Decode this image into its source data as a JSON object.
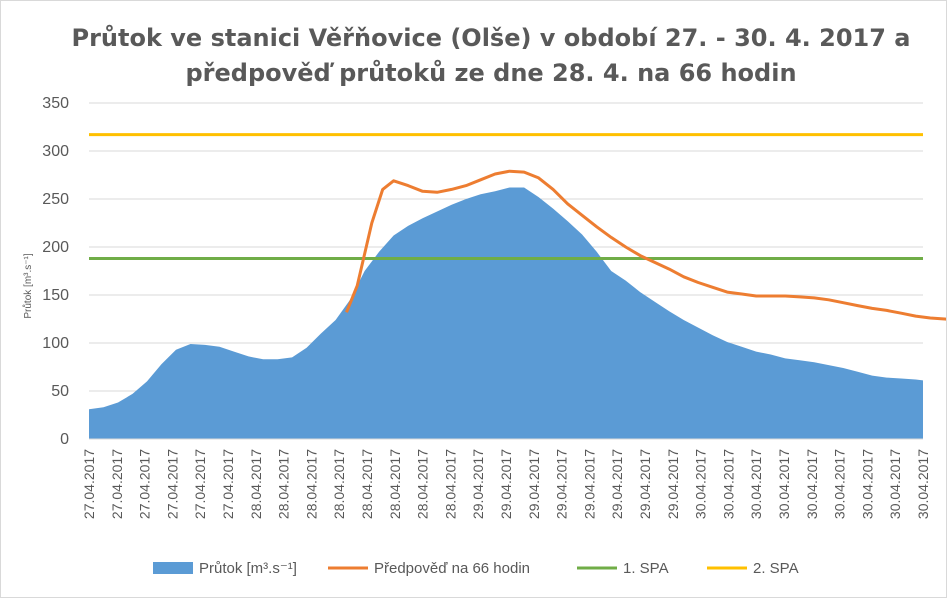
{
  "chart_data": {
    "type": "area",
    "title_lines": [
      "Průtok ve stanici Věřňovice (Olše) v období 27. - 30. 4. 2017 a",
      "předpověď průtoků ze dne 28. 4. na 66 hodin"
    ],
    "ylabel": "Průtok [m³.s⁻¹]",
    "xlabel": "",
    "ylim": [
      0,
      350
    ],
    "y_ticks": [
      0,
      50,
      100,
      150,
      200,
      250,
      300,
      350
    ],
    "x_range_hours": [
      0,
      96
    ],
    "x_tick_hours": [
      0,
      3.2,
      6.4,
      9.6,
      12.8,
      16,
      19.2,
      22.4,
      25.6,
      28.8,
      32,
      35.2,
      38.4,
      41.6,
      44.8,
      48,
      51.2,
      54.4,
      57.6,
      60.8,
      64,
      67.2,
      70.4,
      73.6,
      76.8,
      80,
      83.2,
      86.4,
      89.6,
      92.8,
      96
    ],
    "x_tick_labels": [
      "27.04.2017",
      "27.04.2017",
      "27.04.2017",
      "27.04.2017",
      "27.04.2017",
      "27.04.2017",
      "28.04.2017",
      "28.04.2017",
      "28.04.2017",
      "28.04.2017",
      "28.04.2017",
      "28.04.2017",
      "28.04.2017",
      "28.04.2017",
      "29.04.2017",
      "29.04.2017",
      "29.04.2017",
      "29.04.2017",
      "29.04.2017",
      "29.04.2017",
      "29.04.2017",
      "29.04.2017",
      "30.04.2017",
      "30.04.2017",
      "30.04.2017",
      "30.04.2017",
      "30.04.2017",
      "30.04.2017",
      "30.04.2017",
      "30.04.2017",
      "30.04.2017"
    ],
    "grid": true,
    "legend_position": "bottom",
    "series": [
      {
        "name": "Průtok [m³.s⁻¹]",
        "kind": "area",
        "color": "#5b9bd5",
        "points": [
          [
            0,
            31
          ],
          [
            2,
            33
          ],
          [
            4,
            38
          ],
          [
            6,
            47
          ],
          [
            8,
            60
          ],
          [
            10,
            78
          ],
          [
            12,
            93
          ],
          [
            14,
            99
          ],
          [
            16,
            98
          ],
          [
            18,
            96
          ],
          [
            20,
            91
          ],
          [
            22,
            86
          ],
          [
            24,
            83
          ],
          [
            26,
            83
          ],
          [
            28,
            85
          ],
          [
            30,
            95
          ],
          [
            32,
            110
          ],
          [
            34,
            124
          ],
          [
            36,
            145
          ],
          [
            38,
            175
          ],
          [
            40,
            195
          ],
          [
            42,
            212
          ],
          [
            44,
            222
          ],
          [
            46,
            230
          ],
          [
            48,
            237
          ],
          [
            50,
            244
          ],
          [
            52,
            250
          ],
          [
            54,
            255
          ],
          [
            56,
            258
          ],
          [
            58,
            262
          ],
          [
            60,
            262
          ],
          [
            62,
            252
          ],
          [
            64,
            240
          ],
          [
            66,
            227
          ],
          [
            68,
            213
          ],
          [
            70,
            195
          ],
          [
            72,
            175
          ],
          [
            74,
            165
          ],
          [
            76,
            153
          ],
          [
            78,
            143
          ],
          [
            80,
            133
          ],
          [
            82,
            124
          ],
          [
            84,
            116
          ],
          [
            86,
            108
          ],
          [
            88,
            101
          ],
          [
            90,
            96
          ],
          [
            92,
            91
          ],
          [
            94,
            88
          ],
          [
            96,
            84
          ],
          [
            98,
            82
          ],
          [
            100,
            80
          ],
          [
            102,
            77
          ],
          [
            104,
            74
          ],
          [
            106,
            70
          ],
          [
            108,
            66
          ],
          [
            110,
            64
          ],
          [
            112,
            63
          ],
          [
            114,
            62
          ],
          [
            115,
            61
          ]
        ]
      },
      {
        "name": "Předpověď na 66 hodin",
        "kind": "line",
        "color": "#ed7d31",
        "points": [
          [
            35.5,
            132
          ],
          [
            37,
            160
          ],
          [
            39,
            225
          ],
          [
            40.5,
            260
          ],
          [
            42,
            269
          ],
          [
            44,
            264
          ],
          [
            46,
            258
          ],
          [
            48,
            257
          ],
          [
            50,
            260
          ],
          [
            52,
            264
          ],
          [
            54,
            270
          ],
          [
            56,
            276
          ],
          [
            58,
            279
          ],
          [
            60,
            278
          ],
          [
            62,
            272
          ],
          [
            64,
            260
          ],
          [
            66,
            245
          ],
          [
            68,
            233
          ],
          [
            70,
            221
          ],
          [
            72,
            210
          ],
          [
            74,
            200
          ],
          [
            76,
            191
          ],
          [
            78,
            184
          ],
          [
            80,
            177
          ],
          [
            82,
            169
          ],
          [
            84,
            163
          ],
          [
            86,
            158
          ],
          [
            88,
            153
          ],
          [
            90,
            151
          ],
          [
            92,
            149
          ],
          [
            94,
            149
          ],
          [
            96,
            149
          ],
          [
            98,
            148
          ],
          [
            100,
            147
          ],
          [
            102,
            145
          ],
          [
            104,
            142
          ],
          [
            106,
            139
          ],
          [
            108,
            136
          ],
          [
            110,
            134
          ],
          [
            112,
            131
          ],
          [
            114,
            128
          ],
          [
            116,
            126
          ],
          [
            118,
            125
          ],
          [
            120,
            123
          ],
          [
            122,
            121
          ],
          [
            124,
            120
          ],
          [
            126,
            119
          ],
          [
            127,
            118
          ]
        ]
      },
      {
        "name": "1. SPA",
        "kind": "hline",
        "color": "#70ad47",
        "value": 188
      },
      {
        "name": "2. SPA",
        "kind": "hline",
        "color": "#ffc000",
        "value": 317
      }
    ]
  }
}
